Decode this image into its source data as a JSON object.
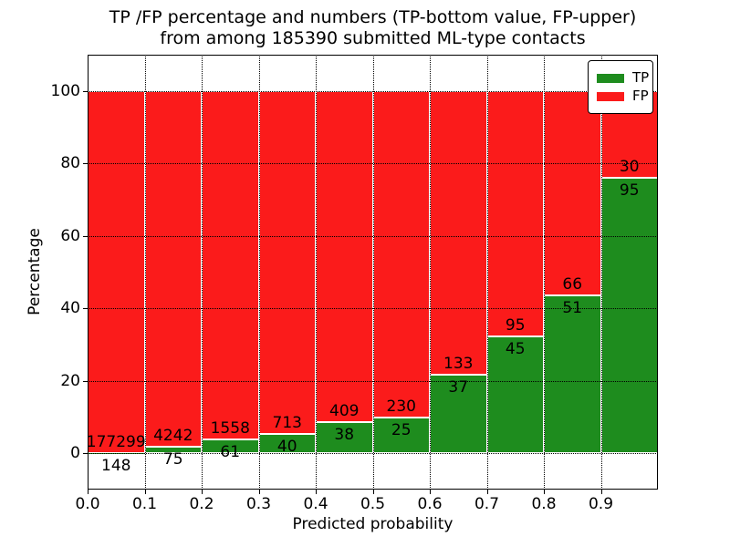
{
  "figure": {
    "title_line1": "TP /FP percentage and numbers (TP-bottom value, FP-upper)",
    "title_line2": "from among 185390 submitted ML-type contacts",
    "background_color": "#ffffff",
    "text_color": "#000000"
  },
  "chart_data": {
    "type": "bar",
    "stacked": true,
    "normalized": "each bar totals 100 percent",
    "title": "TP /FP percentage and numbers (TP-bottom value, FP-upper)\nfrom among 185390 submitted ML-type contacts",
    "xlabel": "Predicted probability",
    "ylabel": "Percentage",
    "xlim": [
      0.0,
      1.0
    ],
    "ylim": [
      -10,
      110
    ],
    "bin_left_edges": [
      0.0,
      0.1,
      0.2,
      0.3,
      0.4,
      0.5,
      0.6,
      0.7,
      0.8,
      0.9
    ],
    "bin_width": 0.1,
    "xtick_labels": [
      "0.0",
      "0.1",
      "0.2",
      "0.3",
      "0.4",
      "0.5",
      "0.6",
      "0.7",
      "0.8",
      "0.9"
    ],
    "ytick_values": [
      0,
      20,
      40,
      60,
      80,
      100
    ],
    "series": [
      {
        "name": "TP",
        "color": "#1e8c1e",
        "counts": [
          148,
          75,
          61,
          40,
          38,
          25,
          37,
          45,
          51,
          95
        ]
      },
      {
        "name": "FP",
        "color": "#fb1b1b",
        "counts": [
          177299,
          4242,
          1558,
          713,
          409,
          230,
          133,
          95,
          66,
          30
        ]
      }
    ],
    "total_contacts": 185390,
    "grid": true,
    "grid_linestyle": "dotted",
    "legend_position": "upper right",
    "legend_entries": [
      "TP",
      "FP"
    ]
  }
}
